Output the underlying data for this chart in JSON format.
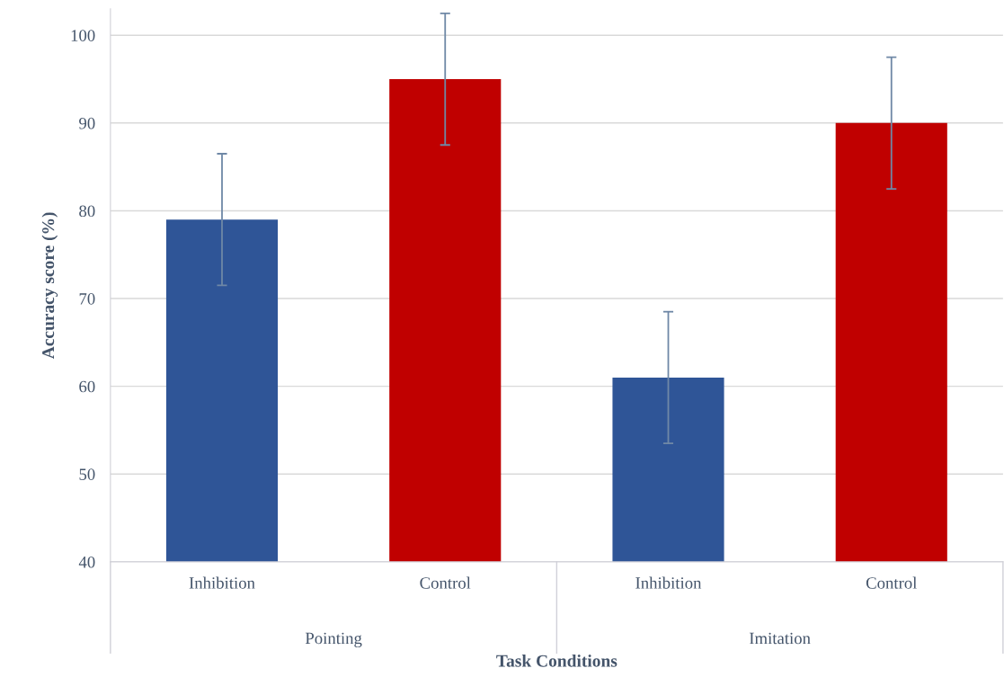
{
  "chart_data": {
    "type": "bar",
    "xlabel": "Task Conditions",
    "ylabel": "Accuracy score (%)",
    "categories": [
      "Inhibition",
      "Control",
      "Inhibition",
      "Control"
    ],
    "values": [
      79,
      95,
      61,
      90
    ],
    "colors": [
      "#2f5597",
      "#c00000",
      "#2f5597",
      "#c00000"
    ],
    "errors": [
      7.5,
      7.5,
      7.5,
      7.5
    ],
    "annotations": [
      "Pointing",
      "Imitation"
    ],
    "ylim": [
      40,
      103
    ],
    "yticks": [
      40,
      50,
      60,
      70,
      80,
      90,
      100
    ],
    "grid": "y"
  }
}
